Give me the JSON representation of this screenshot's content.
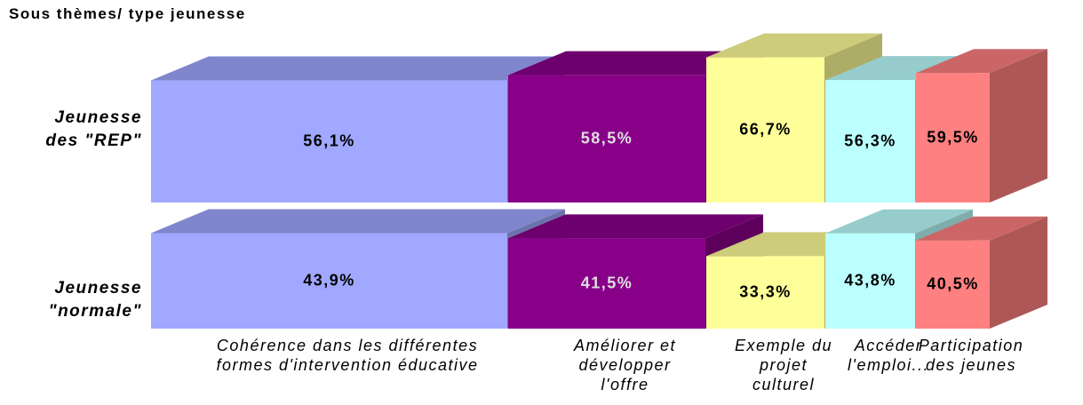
{
  "chart_data": {
    "type": "bar3d",
    "title": "Sous thèmes/ type jeunesse",
    "categories": [
      "Cohérence dans les différentes\nformes d'intervention éducative",
      "Améliorer et\ndévelopper\nl'offre",
      "Exemple du\nprojet\nculturel",
      "Accéder\nl'emploi...",
      "Participation\ndes jeunes"
    ],
    "colors": [
      "#a0a8ff",
      "#880088",
      "#ffff99",
      "#bbffff",
      "#ff8080"
    ],
    "series": [
      {
        "name": "Jeunesse\ndes \"REP\"",
        "values": [
          56.1,
          58.5,
          66.7,
          56.3,
          59.5
        ],
        "value_labels": [
          "56,1%",
          "58,5%",
          "66,7%",
          "56,3%",
          "59,5%"
        ]
      },
      {
        "name": "Jeunesse\n\"normale\"",
        "values": [
          43.9,
          41.5,
          33.3,
          43.8,
          40.5
        ],
        "value_labels": [
          "43,9%",
          "41,5%",
          "33,3%",
          "43,8%",
          "40,5%"
        ]
      }
    ]
  }
}
